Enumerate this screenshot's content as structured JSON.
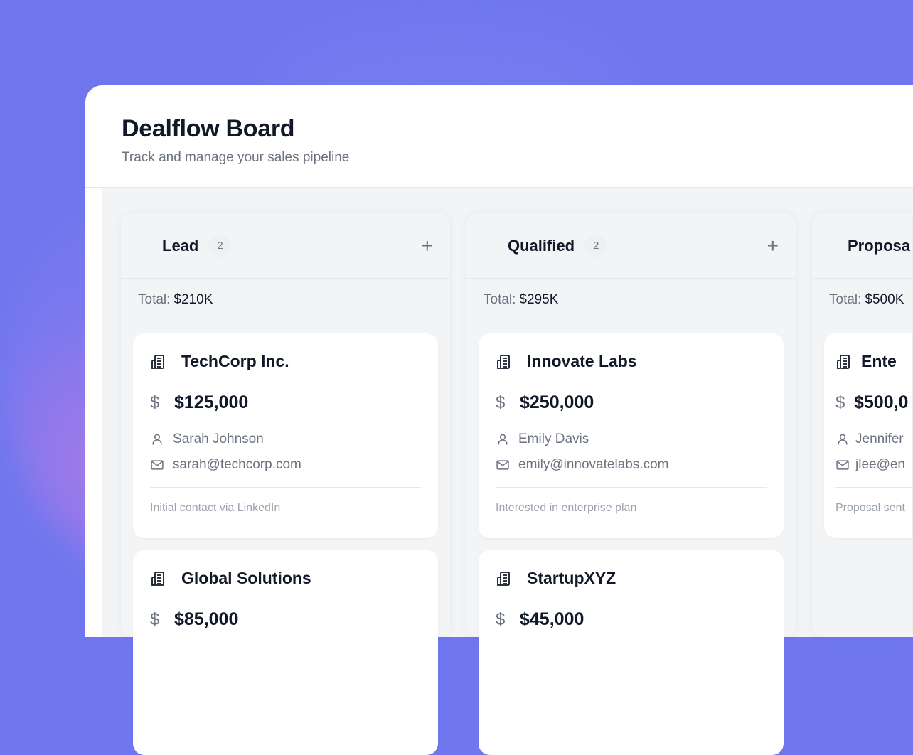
{
  "header": {
    "title": "Dealflow Board",
    "subtitle": "Track and manage your sales pipeline"
  },
  "colors": {
    "background": "#7077ee",
    "card": "#ffffff",
    "board": "#f3f4f6",
    "text": "#111827",
    "muted": "#6b7280"
  },
  "columns": [
    {
      "name": "Lead",
      "count": "2",
      "total_label": "Total:",
      "total": "$210K",
      "deals": [
        {
          "company": "TechCorp Inc.",
          "amount": "$125,000",
          "contact": "Sarah Johnson",
          "email": "sarah@techcorp.com",
          "note": "Initial contact via LinkedIn"
        },
        {
          "company": "Global Solutions",
          "amount": "$85,000"
        }
      ]
    },
    {
      "name": "Qualified",
      "count": "2",
      "total_label": "Total:",
      "total": "$295K",
      "deals": [
        {
          "company": "Innovate Labs",
          "amount": "$250,000",
          "contact": "Emily Davis",
          "email": "emily@innovatelabs.com",
          "note": "Interested in enterprise plan"
        },
        {
          "company": "StartupXYZ",
          "amount": "$45,000"
        }
      ]
    },
    {
      "name": "Proposa",
      "total_label": "Total:",
      "total": "$500K",
      "deals": [
        {
          "company": "Ente",
          "amount": "$500,0",
          "contact": "Jennifer",
          "email": "jlee@en",
          "note": "Proposal sent"
        }
      ]
    }
  ]
}
